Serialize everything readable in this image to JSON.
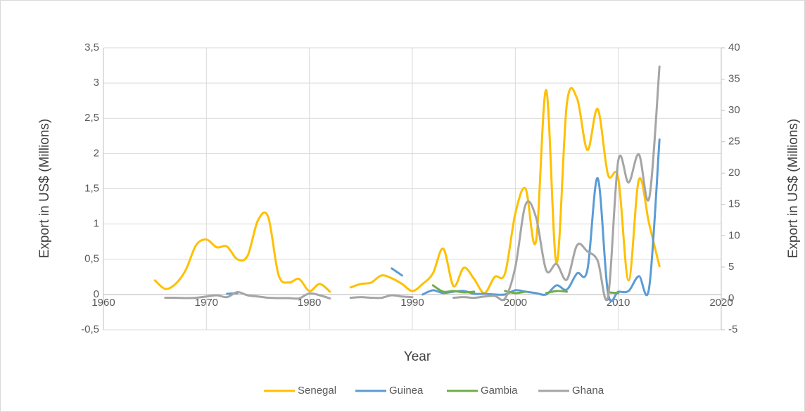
{
  "chart_data": {
    "type": "line",
    "x_label": "Year",
    "y_label": "Export in US$ (Millions)",
    "y2_label": "Export in US$ (Millions)",
    "x": [
      1965,
      1966,
      1967,
      1968,
      1969,
      1970,
      1971,
      1972,
      1973,
      1974,
      1975,
      1976,
      1977,
      1978,
      1979,
      1980,
      1981,
      1982,
      1983,
      1984,
      1985,
      1986,
      1987,
      1988,
      1989,
      1990,
      1991,
      1992,
      1993,
      1994,
      1995,
      1996,
      1997,
      1998,
      1999,
      2000,
      2001,
      2002,
      2003,
      2004,
      2005,
      2006,
      2007,
      2008,
      2009,
      2010,
      2011,
      2012,
      2013,
      2014
    ],
    "xlim": [
      1960,
      2020
    ],
    "xticks": [
      1960,
      1970,
      1980,
      1990,
      2000,
      2010,
      2020
    ],
    "ylim": [
      -0.5,
      3.5
    ],
    "yticks": [
      {
        "value": -0.5,
        "label": "-0,5"
      },
      0,
      {
        "value": 0.5,
        "label": "0,5"
      },
      1,
      {
        "value": 1.5,
        "label": "1,5"
      },
      2,
      {
        "value": 2.5,
        "label": "2,5"
      },
      3,
      {
        "value": 3.5,
        "label": "3,5"
      }
    ],
    "y2lim": [
      -5,
      40
    ],
    "y2ticks": [
      -5,
      0,
      5,
      10,
      15,
      20,
      25,
      30,
      35,
      40
    ],
    "grid": true,
    "legend": "bottom",
    "series": [
      {
        "name": "Senegal",
        "color": "#ffc000",
        "values": [
          0.2,
          0.08,
          0.15,
          0.35,
          0.7,
          0.78,
          0.67,
          0.68,
          0.5,
          0.55,
          1.05,
          1.1,
          0.28,
          0.17,
          0.22,
          0.05,
          0.15,
          0.04,
          null,
          0.1,
          0.15,
          0.17,
          0.27,
          0.23,
          0.15,
          0.05,
          0.15,
          0.3,
          0.65,
          0.12,
          0.38,
          0.22,
          0.02,
          0.25,
          0.3,
          1.15,
          1.5,
          0.75,
          2.9,
          0.45,
          2.7,
          2.78,
          2.05,
          2.63,
          1.7,
          1.65,
          0.2,
          1.63,
          1.0,
          0.4
        ]
      },
      {
        "name": "Guinea",
        "color": "#5b9bd5",
        "values": [
          null,
          null,
          null,
          null,
          null,
          null,
          null,
          0.01,
          0.02,
          null,
          null,
          null,
          null,
          null,
          null,
          null,
          null,
          null,
          null,
          null,
          null,
          null,
          null,
          0.37,
          0.27,
          null,
          0.0,
          0.06,
          0.02,
          0.04,
          0.05,
          0.01,
          0.01,
          0.0,
          0.0,
          0.06,
          0.04,
          0.02,
          0.0,
          0.13,
          0.07,
          0.3,
          0.35,
          1.65,
          0.02,
          0.04,
          0.05,
          0.26,
          0.1,
          2.2
        ]
      },
      {
        "name": "Gambia",
        "color": "#70ad47",
        "values": [
          null,
          null,
          null,
          null,
          null,
          null,
          null,
          null,
          null,
          null,
          null,
          null,
          null,
          null,
          null,
          null,
          null,
          null,
          null,
          null,
          null,
          null,
          null,
          null,
          null,
          null,
          null,
          0.13,
          0.04,
          0.05,
          0.03,
          0.04,
          null,
          null,
          0.05,
          0.02,
          0.04,
          null,
          0.02,
          0.05,
          0.04,
          null,
          null,
          null,
          0.03,
          0.02,
          null,
          null,
          null,
          null
        ]
      },
      {
        "name": "Ghana",
        "color": "#a5a5a5",
        "axis": "y2",
        "values": [
          null,
          0.1,
          0.1,
          0.05,
          0.1,
          0.3,
          0.5,
          0.2,
          1.0,
          0.5,
          0.3,
          0.1,
          0.05,
          0.05,
          0.0,
          0.8,
          0.5,
          0.0,
          null,
          0.1,
          0.2,
          0.1,
          0.1,
          0.5,
          0.3,
          0.2,
          null,
          null,
          null,
          0.1,
          0.2,
          0.1,
          0.3,
          0.4,
          0.0,
          5,
          15,
          13,
          4.5,
          5.5,
          3,
          8.5,
          7.5,
          6,
          0.3,
          22,
          18.5,
          23,
          16,
          37
        ]
      }
    ]
  }
}
